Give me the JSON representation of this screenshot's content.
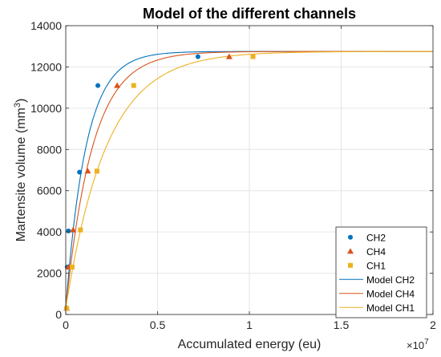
{
  "chart_data": {
    "type": "scatter",
    "title": "Model of the different channels",
    "xlabel": "Accumulated energy (eu)",
    "ylabel_main": "Martensite volume (mm",
    "ylabel_sup": "3",
    "ylabel_end": ")",
    "x_exponent_base": "×10",
    "x_exponent_power": "7",
    "xlim": [
      0,
      20000000
    ],
    "ylim": [
      0,
      14000
    ],
    "x_ticks": [
      0,
      5000000,
      10000000,
      15000000,
      20000000
    ],
    "x_tick_labels": [
      "0",
      "0.5",
      "1",
      "1.5",
      "2"
    ],
    "y_ticks": [
      0,
      2000,
      4000,
      6000,
      8000,
      10000,
      12000,
      14000
    ],
    "y_tick_labels": [
      "0",
      "2000",
      "4000",
      "6000",
      "8000",
      "10000",
      "12000",
      "14000"
    ],
    "grid": true,
    "legend_position": "bottom-right",
    "series": [
      {
        "name": "CH2",
        "kind": "points",
        "marker": "circle",
        "color": "#0072BD",
        "x": [
          50000,
          80000,
          150000,
          750000,
          1750000,
          7200000
        ],
        "y": [
          300,
          2300,
          4050,
          6900,
          11100,
          12500
        ]
      },
      {
        "name": "CH4",
        "kind": "points",
        "marker": "triangle",
        "color": "#D95319",
        "x": [
          50000,
          150000,
          400000,
          1200000,
          2800000,
          8900000
        ],
        "y": [
          300,
          2300,
          4100,
          6950,
          11100,
          12500
        ]
      },
      {
        "name": "CH1",
        "kind": "points",
        "marker": "square",
        "color": "#EDB120",
        "x": [
          50000,
          350000,
          800000,
          1700000,
          3700000,
          10200000
        ],
        "y": [
          300,
          2300,
          4100,
          6950,
          11100,
          12500
        ]
      },
      {
        "name": "Model CH2",
        "kind": "curve",
        "color": "#0072BD",
        "y0": 300,
        "ymax": 12750,
        "rate": 9e-07
      },
      {
        "name": "Model CH4",
        "kind": "curve",
        "color": "#D95319",
        "y0": 300,
        "ymax": 12750,
        "rate": 6.8e-07
      },
      {
        "name": "Model CH1",
        "kind": "curve",
        "color": "#EDB120",
        "y0": 300,
        "ymax": 12750,
        "rate": 4.5e-07
      }
    ]
  }
}
